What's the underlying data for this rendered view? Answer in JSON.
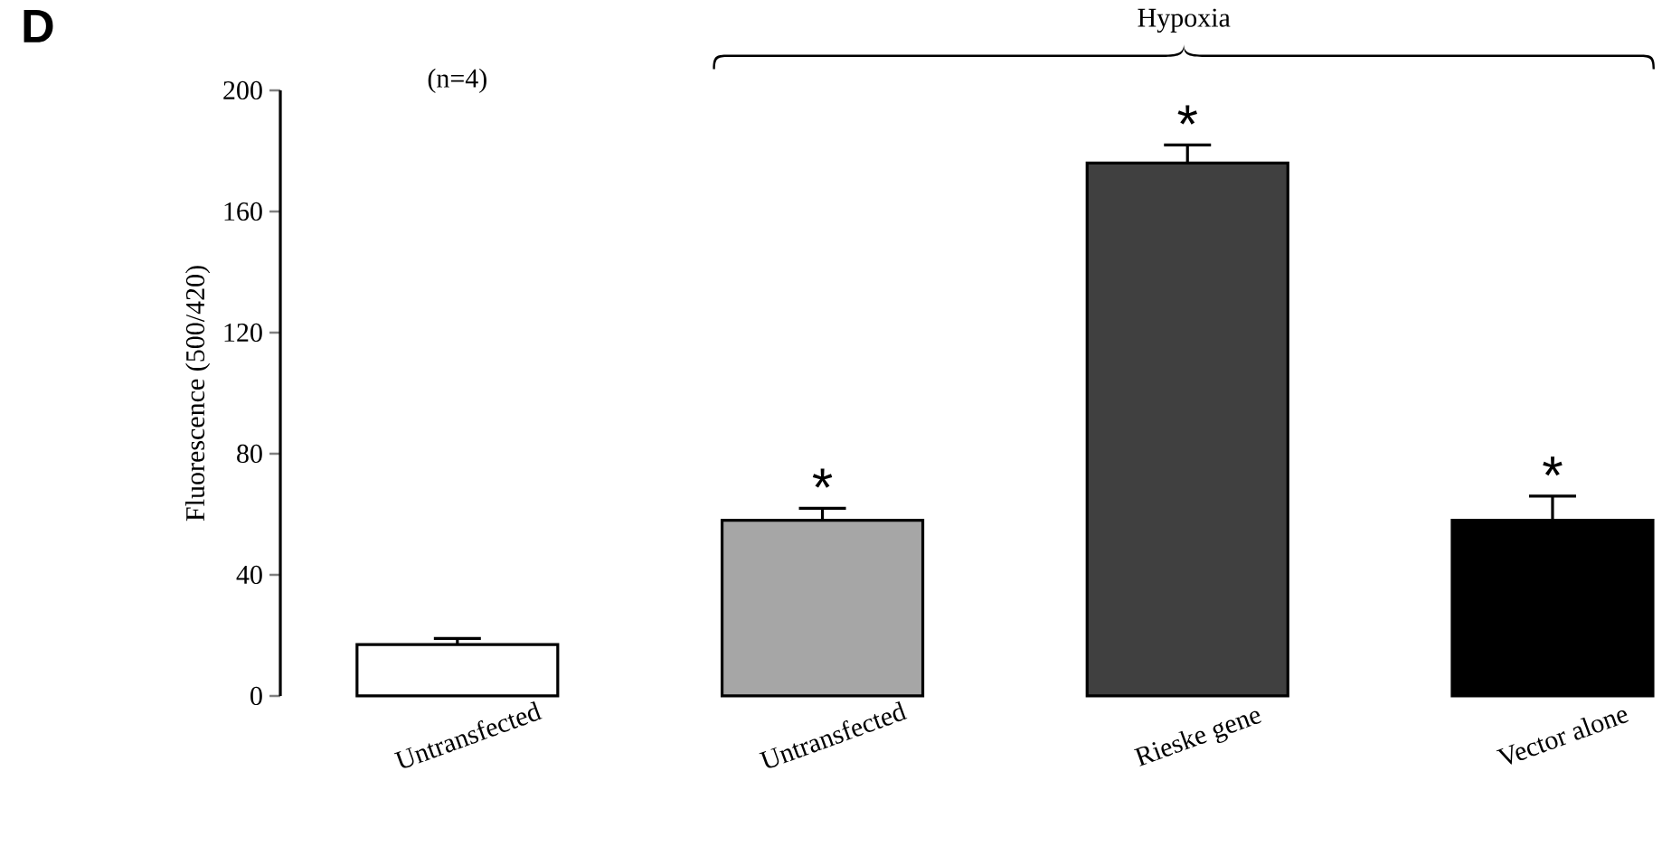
{
  "chart_data": {
    "type": "bar",
    "ylabel": "Fluorescence (500/420)",
    "categories": [
      "Untransfected",
      "Untransfected",
      "Rieske gene",
      "Vector alone"
    ],
    "values": [
      17,
      58,
      176,
      58
    ],
    "colors": [
      "#ffffff",
      "#a6a6a6",
      "#404040",
      "#000000"
    ],
    "errors": [
      [
        17,
        19
      ],
      [
        58,
        62
      ],
      [
        176,
        182
      ],
      [
        58,
        66
      ]
    ],
    "ylim": [
      0,
      200
    ],
    "yticks": [
      0,
      40,
      80,
      120,
      160,
      200
    ],
    "annotations": [
      "D",
      "(n=4)",
      "Hypoxia",
      "*",
      "*",
      "*"
    ]
  }
}
